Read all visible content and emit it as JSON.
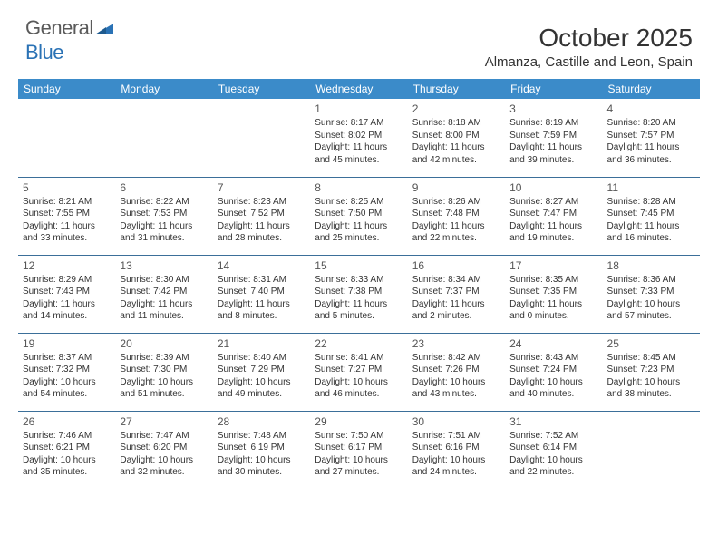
{
  "brand": {
    "part1": "General",
    "part2": "Blue"
  },
  "title": "October 2025",
  "location": "Almanza, Castille and Leon, Spain",
  "colors": {
    "header_bg": "#3b8bc9",
    "header_text": "#ffffff",
    "row_border": "#3b6f99",
    "brand_gray": "#5a5a5a",
    "brand_blue": "#2a72b5",
    "text": "#333333",
    "daynum": "#555555"
  },
  "weekdays": [
    "Sunday",
    "Monday",
    "Tuesday",
    "Wednesday",
    "Thursday",
    "Friday",
    "Saturday"
  ],
  "grid": [
    [
      null,
      null,
      null,
      {
        "n": "1",
        "sr": "Sunrise: 8:17 AM",
        "ss": "Sunset: 8:02 PM",
        "d1": "Daylight: 11 hours",
        "d2": "and 45 minutes."
      },
      {
        "n": "2",
        "sr": "Sunrise: 8:18 AM",
        "ss": "Sunset: 8:00 PM",
        "d1": "Daylight: 11 hours",
        "d2": "and 42 minutes."
      },
      {
        "n": "3",
        "sr": "Sunrise: 8:19 AM",
        "ss": "Sunset: 7:59 PM",
        "d1": "Daylight: 11 hours",
        "d2": "and 39 minutes."
      },
      {
        "n": "4",
        "sr": "Sunrise: 8:20 AM",
        "ss": "Sunset: 7:57 PM",
        "d1": "Daylight: 11 hours",
        "d2": "and 36 minutes."
      }
    ],
    [
      {
        "n": "5",
        "sr": "Sunrise: 8:21 AM",
        "ss": "Sunset: 7:55 PM",
        "d1": "Daylight: 11 hours",
        "d2": "and 33 minutes."
      },
      {
        "n": "6",
        "sr": "Sunrise: 8:22 AM",
        "ss": "Sunset: 7:53 PM",
        "d1": "Daylight: 11 hours",
        "d2": "and 31 minutes."
      },
      {
        "n": "7",
        "sr": "Sunrise: 8:23 AM",
        "ss": "Sunset: 7:52 PM",
        "d1": "Daylight: 11 hours",
        "d2": "and 28 minutes."
      },
      {
        "n": "8",
        "sr": "Sunrise: 8:25 AM",
        "ss": "Sunset: 7:50 PM",
        "d1": "Daylight: 11 hours",
        "d2": "and 25 minutes."
      },
      {
        "n": "9",
        "sr": "Sunrise: 8:26 AM",
        "ss": "Sunset: 7:48 PM",
        "d1": "Daylight: 11 hours",
        "d2": "and 22 minutes."
      },
      {
        "n": "10",
        "sr": "Sunrise: 8:27 AM",
        "ss": "Sunset: 7:47 PM",
        "d1": "Daylight: 11 hours",
        "d2": "and 19 minutes."
      },
      {
        "n": "11",
        "sr": "Sunrise: 8:28 AM",
        "ss": "Sunset: 7:45 PM",
        "d1": "Daylight: 11 hours",
        "d2": "and 16 minutes."
      }
    ],
    [
      {
        "n": "12",
        "sr": "Sunrise: 8:29 AM",
        "ss": "Sunset: 7:43 PM",
        "d1": "Daylight: 11 hours",
        "d2": "and 14 minutes."
      },
      {
        "n": "13",
        "sr": "Sunrise: 8:30 AM",
        "ss": "Sunset: 7:42 PM",
        "d1": "Daylight: 11 hours",
        "d2": "and 11 minutes."
      },
      {
        "n": "14",
        "sr": "Sunrise: 8:31 AM",
        "ss": "Sunset: 7:40 PM",
        "d1": "Daylight: 11 hours",
        "d2": "and 8 minutes."
      },
      {
        "n": "15",
        "sr": "Sunrise: 8:33 AM",
        "ss": "Sunset: 7:38 PM",
        "d1": "Daylight: 11 hours",
        "d2": "and 5 minutes."
      },
      {
        "n": "16",
        "sr": "Sunrise: 8:34 AM",
        "ss": "Sunset: 7:37 PM",
        "d1": "Daylight: 11 hours",
        "d2": "and 2 minutes."
      },
      {
        "n": "17",
        "sr": "Sunrise: 8:35 AM",
        "ss": "Sunset: 7:35 PM",
        "d1": "Daylight: 11 hours",
        "d2": "and 0 minutes."
      },
      {
        "n": "18",
        "sr": "Sunrise: 8:36 AM",
        "ss": "Sunset: 7:33 PM",
        "d1": "Daylight: 10 hours",
        "d2": "and 57 minutes."
      }
    ],
    [
      {
        "n": "19",
        "sr": "Sunrise: 8:37 AM",
        "ss": "Sunset: 7:32 PM",
        "d1": "Daylight: 10 hours",
        "d2": "and 54 minutes."
      },
      {
        "n": "20",
        "sr": "Sunrise: 8:39 AM",
        "ss": "Sunset: 7:30 PM",
        "d1": "Daylight: 10 hours",
        "d2": "and 51 minutes."
      },
      {
        "n": "21",
        "sr": "Sunrise: 8:40 AM",
        "ss": "Sunset: 7:29 PM",
        "d1": "Daylight: 10 hours",
        "d2": "and 49 minutes."
      },
      {
        "n": "22",
        "sr": "Sunrise: 8:41 AM",
        "ss": "Sunset: 7:27 PM",
        "d1": "Daylight: 10 hours",
        "d2": "and 46 minutes."
      },
      {
        "n": "23",
        "sr": "Sunrise: 8:42 AM",
        "ss": "Sunset: 7:26 PM",
        "d1": "Daylight: 10 hours",
        "d2": "and 43 minutes."
      },
      {
        "n": "24",
        "sr": "Sunrise: 8:43 AM",
        "ss": "Sunset: 7:24 PM",
        "d1": "Daylight: 10 hours",
        "d2": "and 40 minutes."
      },
      {
        "n": "25",
        "sr": "Sunrise: 8:45 AM",
        "ss": "Sunset: 7:23 PM",
        "d1": "Daylight: 10 hours",
        "d2": "and 38 minutes."
      }
    ],
    [
      {
        "n": "26",
        "sr": "Sunrise: 7:46 AM",
        "ss": "Sunset: 6:21 PM",
        "d1": "Daylight: 10 hours",
        "d2": "and 35 minutes."
      },
      {
        "n": "27",
        "sr": "Sunrise: 7:47 AM",
        "ss": "Sunset: 6:20 PM",
        "d1": "Daylight: 10 hours",
        "d2": "and 32 minutes."
      },
      {
        "n": "28",
        "sr": "Sunrise: 7:48 AM",
        "ss": "Sunset: 6:19 PM",
        "d1": "Daylight: 10 hours",
        "d2": "and 30 minutes."
      },
      {
        "n": "29",
        "sr": "Sunrise: 7:50 AM",
        "ss": "Sunset: 6:17 PM",
        "d1": "Daylight: 10 hours",
        "d2": "and 27 minutes."
      },
      {
        "n": "30",
        "sr": "Sunrise: 7:51 AM",
        "ss": "Sunset: 6:16 PM",
        "d1": "Daylight: 10 hours",
        "d2": "and 24 minutes."
      },
      {
        "n": "31",
        "sr": "Sunrise: 7:52 AM",
        "ss": "Sunset: 6:14 PM",
        "d1": "Daylight: 10 hours",
        "d2": "and 22 minutes."
      },
      null
    ]
  ]
}
